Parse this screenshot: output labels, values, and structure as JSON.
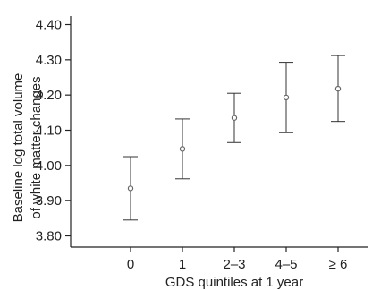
{
  "chart_data": {
    "type": "scatter",
    "xlabel": "GDS quintiles at 1 year",
    "ylabel_lines": [
      "Baseline log total volume",
      "of white matter changes"
    ],
    "categories": [
      "0",
      "1",
      "2–3",
      "4–5",
      "≥ 6"
    ],
    "y_ticks": [
      "3.80",
      "3.90",
      "4.00",
      "4.10",
      "4.20",
      "4.30",
      "4.40"
    ],
    "ylim": [
      3.77,
      4.43
    ],
    "points": [
      {
        "category": "0",
        "value": 3.935,
        "lower": 3.845,
        "upper": 4.025
      },
      {
        "category": "1",
        "value": 4.047,
        "lower": 3.962,
        "upper": 4.132
      },
      {
        "category": "2–3",
        "value": 4.135,
        "lower": 4.065,
        "upper": 4.205
      },
      {
        "category": "4–5",
        "value": 4.193,
        "lower": 4.093,
        "upper": 4.293
      },
      {
        "category": "≥ 6",
        "value": 4.218,
        "lower": 4.125,
        "upper": 4.312
      }
    ],
    "grid": false,
    "legend": "none",
    "colors": {
      "axis": "#222222",
      "errorbar": "#333333",
      "point": "#666666"
    }
  }
}
